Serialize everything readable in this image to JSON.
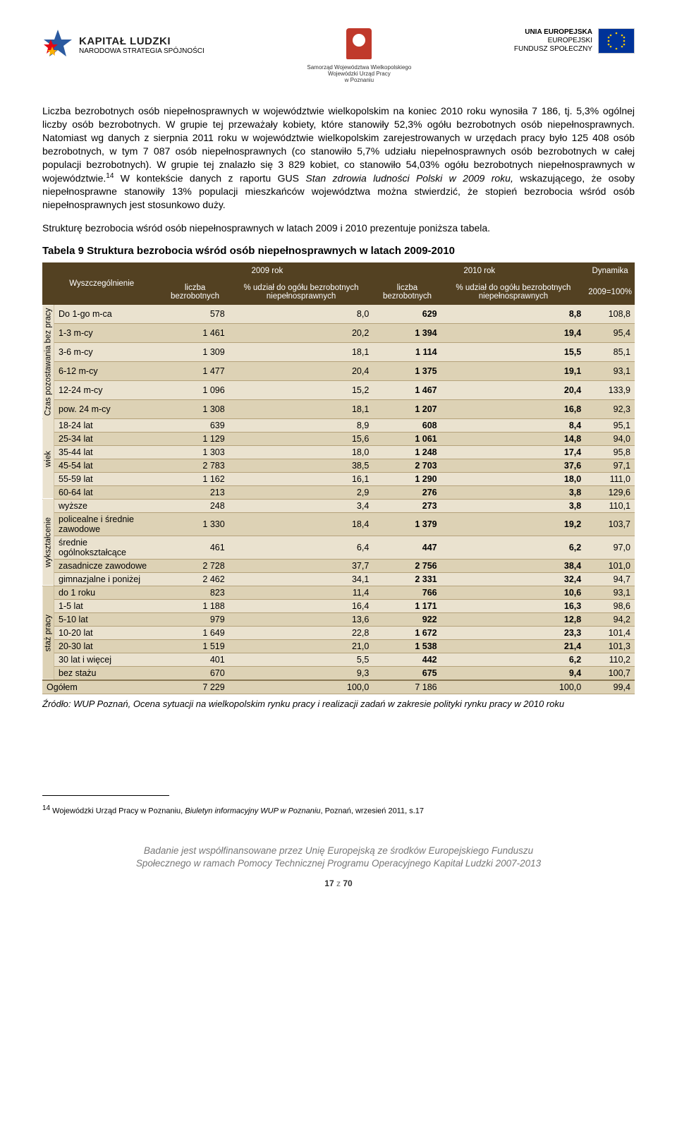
{
  "header": {
    "kl_title": "KAPITAŁ LUDZKI",
    "kl_sub": "NARODOWA STRATEGIA SPÓJNOŚCI",
    "center_line1": "Samorząd Województwa Wielkopolskiego",
    "center_line2": "Wojewódzki Urząd Pracy",
    "center_line3": "w Poznaniu",
    "eu_line1": "UNIA EUROPEJSKA",
    "eu_line2": "EUROPEJSKI",
    "eu_line3": "FUNDUSZ SPOŁECZNY"
  },
  "para1_a": "Liczba bezrobotnych osób niepełnosprawnych w województwie wielkopolskim na koniec 2010 roku wynosiła 7 186, tj. 5,3% ogólnej liczby osób bezrobotnych. W grupie tej przeważały kobiety, które stanowiły 52,3% ogółu bezrobotnych osób niepełnosprawnych. Natomiast wg danych z sierpnia 2011 roku w województwie wielkopolskim zarejestrowanych w urzędach pracy było 125 408 osób bezrobotnych, w tym 7 087 osób niepełnosprawnych (co stanowiło 5,7% udziału niepełnosprawnych osób bezrobotnych w całej populacji bezrobotnych). W grupie tej znalazło się 3 829 kobiet, co stanowiło 54,03% ogółu bezrobotnych niepełnosprawnych w województwie.",
  "para1_sup": "14",
  "para1_b": " W kontekście danych z raportu GUS ",
  "para1_italic": "Stan zdrowia ludności Polski w 2009 roku,",
  "para1_c": " wskazującego, że osoby niepełnosprawne stanowiły 13% populacji mieszkańców województwa można stwierdzić, że stopień bezrobocia wśród osób niepełnosprawnych jest stosunkowo duży.",
  "para2": "Strukturę bezrobocia wśród osób niepełnosprawnych w latach 2009 i 2010 prezentuje poniższa tabela.",
  "table_title": "Tabela 9 Struktura bezrobocia wśród osób niepełnosprawnych w latach 2009-2010",
  "thead": {
    "c0": "Wyszczególnienie",
    "y2009": "2009 rok",
    "y2010": "2010 rok",
    "dyn": "Dynamika",
    "liczba": "liczba bezrobotnych",
    "pct2009": "% udział do ogółu bezrobotnych niepełnosprawnych",
    "pct2010": "% udział do ogółu bezrobotnych niepełnosprawnych",
    "dyn_sub": "2009=100%"
  },
  "groups": [
    {
      "label": "Czas\npozostawania\nbez pracy",
      "rows": [
        {
          "name": "Do 1-go m-ca",
          "n09": "578",
          "p09": "8,0",
          "n10": "629",
          "p10": "8,8",
          "d": "108,8"
        },
        {
          "name": "1-3 m-cy",
          "n09": "1 461",
          "p09": "20,2",
          "n10": "1 394",
          "p10": "19,4",
          "d": "95,4"
        },
        {
          "name": "3-6 m-cy",
          "n09": "1 309",
          "p09": "18,1",
          "n10": "1 114",
          "p10": "15,5",
          "d": "85,1"
        },
        {
          "name": "6-12 m-cy",
          "n09": "1 477",
          "p09": "20,4",
          "n10": "1 375",
          "p10": "19,1",
          "d": "93,1"
        },
        {
          "name": "12-24 m-cy",
          "n09": "1 096",
          "p09": "15,2",
          "n10": "1 467",
          "p10": "20,4",
          "d": "133,9"
        },
        {
          "name": "pow. 24 m-cy",
          "n09": "1 308",
          "p09": "18,1",
          "n10": "1 207",
          "p10": "16,8",
          "d": "92,3"
        }
      ]
    },
    {
      "label": "wiek",
      "rows": [
        {
          "name": "18-24 lat",
          "n09": "639",
          "p09": "8,9",
          "n10": "608",
          "p10": "8,4",
          "d": "95,1"
        },
        {
          "name": "25-34 lat",
          "n09": "1 129",
          "p09": "15,6",
          "n10": "1 061",
          "p10": "14,8",
          "d": "94,0"
        },
        {
          "name": "35-44 lat",
          "n09": "1 303",
          "p09": "18,0",
          "n10": "1 248",
          "p10": "17,4",
          "d": "95,8"
        },
        {
          "name": "45-54 lat",
          "n09": "2 783",
          "p09": "38,5",
          "n10": "2 703",
          "p10": "37,6",
          "d": "97,1"
        },
        {
          "name": "55-59 lat",
          "n09": "1 162",
          "p09": "16,1",
          "n10": "1 290",
          "p10": "18,0",
          "d": "111,0"
        },
        {
          "name": "60-64 lat",
          "n09": "213",
          "p09": "2,9",
          "n10": "276",
          "p10": "3,8",
          "d": "129,6"
        }
      ]
    },
    {
      "label": "wykształcenie",
      "rows": [
        {
          "name": "wyższe",
          "n09": "248",
          "p09": "3,4",
          "n10": "273",
          "p10": "3,8",
          "d": "110,1"
        },
        {
          "name": "policealne i średnie zawodowe",
          "n09": "1 330",
          "p09": "18,4",
          "n10": "1 379",
          "p10": "19,2",
          "d": "103,7"
        },
        {
          "name": "średnie ogólnokształcące",
          "n09": "461",
          "p09": "6,4",
          "n10": "447",
          "p10": "6,2",
          "d": "97,0"
        },
        {
          "name": "zasadnicze zawodowe",
          "n09": "2 728",
          "p09": "37,7",
          "n10": "2 756",
          "p10": "38,4",
          "d": "101,0"
        },
        {
          "name": "gimnazjalne i poniżej",
          "n09": "2 462",
          "p09": "34,1",
          "n10": "2 331",
          "p10": "32,4",
          "d": "94,7"
        }
      ]
    },
    {
      "label": "staż pracy",
      "rows": [
        {
          "name": "do 1 roku",
          "n09": "823",
          "p09": "11,4",
          "n10": "766",
          "p10": "10,6",
          "d": "93,1"
        },
        {
          "name": "1-5 lat",
          "n09": "1 188",
          "p09": "16,4",
          "n10": "1 171",
          "p10": "16,3",
          "d": "98,6"
        },
        {
          "name": "5-10 lat",
          "n09": "979",
          "p09": "13,6",
          "n10": "922",
          "p10": "12,8",
          "d": "94,2"
        },
        {
          "name": "10-20 lat",
          "n09": "1 649",
          "p09": "22,8",
          "n10": "1 672",
          "p10": "23,3",
          "d": "101,4"
        },
        {
          "name": "20-30 lat",
          "n09": "1 519",
          "p09": "21,0",
          "n10": "1 538",
          "p10": "21,4",
          "d": "101,3"
        },
        {
          "name": "30 lat i więcej",
          "n09": "401",
          "p09": "5,5",
          "n10": "442",
          "p10": "6,2",
          "d": "110,2"
        },
        {
          "name": "bez stażu",
          "n09": "670",
          "p09": "9,3",
          "n10": "675",
          "p10": "9,4",
          "d": "100,7"
        }
      ]
    }
  ],
  "total": {
    "label": "Ogółem",
    "n09": "7 229",
    "p09": "100,0",
    "n10": "7 186",
    "p10": "100,0",
    "d": "99,4"
  },
  "source": "Źródło: WUP Poznań, Ocena sytuacji na wielkopolskim rynku pracy i realizacji zadań w zakresie polityki rynku pracy w 2010 roku",
  "footnote_num": "14",
  "footnote_a": " Wojewódzki Urząd Pracy w Poznaniu, ",
  "footnote_it": "Biuletyn informacyjny WUP w Poznaniu",
  "footnote_b": ", Poznań, wrzesień 2011, s.17",
  "footer1": "Badanie jest współfinansowane przez Unię Europejską ze środków Europejskiego Funduszu",
  "footer2": "Społecznego w ramach Pomocy Technicznej Programu Operacyjnego Kapitał Ludzki 2007-2013",
  "page_cur": "17",
  "page_sep": " z ",
  "page_tot": "70"
}
